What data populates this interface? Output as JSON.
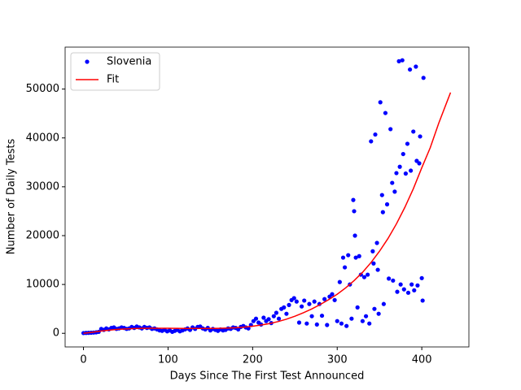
{
  "chart_data": {
    "type": "scatter",
    "xlabel": "Days Since The First Test Announced",
    "ylabel": "Number of Daily Tests",
    "xlim": [
      -21.7,
      455.7
    ],
    "ylim": [
      -2790,
      58590
    ],
    "xticks": [
      0,
      100,
      200,
      300,
      400
    ],
    "yticks": [
      0,
      10000,
      20000,
      30000,
      40000,
      50000
    ],
    "legend": "upper left",
    "series": [
      {
        "name": "Slovenia",
        "color": "#0000ff",
        "style": "points",
        "x": [
          0,
          3,
          6,
          9,
          12,
          15,
          18,
          21,
          24,
          27,
          30,
          33,
          36,
          39,
          42,
          45,
          48,
          51,
          54,
          57,
          60,
          63,
          66,
          69,
          72,
          75,
          78,
          81,
          84,
          87,
          90,
          93,
          96,
          99,
          102,
          105,
          108,
          111,
          114,
          117,
          120,
          123,
          126,
          129,
          132,
          135,
          138,
          141,
          144,
          147,
          150,
          153,
          156,
          159,
          162,
          165,
          168,
          171,
          174,
          177,
          180,
          183,
          186,
          189,
          192,
          195,
          198,
          201,
          204,
          207,
          210,
          213,
          216,
          219,
          222,
          225,
          228,
          231,
          234,
          237,
          240,
          243,
          246,
          249,
          252,
          255,
          258,
          261,
          264,
          267,
          270,
          273,
          276,
          279,
          282,
          285,
          288,
          291,
          294,
          297,
          300,
          303,
          305,
          307,
          309,
          311,
          313,
          315,
          317,
          319,
          320,
          321,
          322,
          324,
          326,
          328,
          330,
          332,
          334,
          336,
          338,
          340,
          342,
          343,
          344,
          345,
          347,
          348,
          349,
          351,
          353,
          354,
          355,
          357,
          359,
          361,
          363,
          365,
          366,
          368,
          370,
          371,
          373,
          374,
          375,
          377,
          378,
          379,
          381,
          383,
          384,
          386,
          387,
          388,
          390,
          391,
          393,
          394,
          395,
          397,
          398,
          400,
          401,
          402
        ],
        "values": [
          50,
          80,
          100,
          120,
          150,
          200,
          300,
          900,
          700,
          1000,
          800,
          1100,
          1200,
          900,
          1000,
          1200,
          1100,
          900,
          1000,
          1300,
          1100,
          1400,
          1200,
          1000,
          1300,
          1100,
          1200,
          900,
          1000,
          800,
          600,
          500,
          700,
          400,
          600,
          300,
          500,
          700,
          400,
          600,
          800,
          1000,
          700,
          1200,
          900,
          1300,
          1400,
          1000,
          800,
          1100,
          600,
          900,
          700,
          500,
          800,
          600,
          700,
          1000,
          900,
          1200,
          1100,
          800,
          1300,
          1500,
          1200,
          1000,
          1700,
          2500,
          3000,
          2200,
          1800,
          3200,
          2500,
          2900,
          2100,
          3500,
          4200,
          3000,
          5000,
          5300,
          4000,
          5800,
          6800,
          7200,
          6500,
          2200,
          5500,
          6700,
          2000,
          6000,
          3500,
          6500,
          1800,
          6000,
          3600,
          7000,
          1700,
          7500,
          8000,
          6800,
          2500,
          10500,
          2000,
          15500,
          13500,
          1500,
          16000,
          10000,
          3000,
          27300,
          25000,
          20000,
          15500,
          5300,
          15800,
          12000,
          2500,
          11500,
          3500,
          12000,
          2000,
          39300,
          16800,
          14300,
          5000,
          40700,
          18500,
          13000,
          4000,
          47300,
          28300,
          24800,
          6000,
          45100,
          26400,
          11200,
          41800,
          30800,
          10800,
          29000,
          32800,
          8500,
          55700,
          34100,
          10000,
          55900,
          36700,
          9000,
          32700,
          38800,
          8300,
          54000,
          33300,
          10000,
          41300,
          8800,
          54600,
          35300,
          9800,
          34800,
          40300,
          11300,
          6700,
          52300
        ]
      },
      {
        "name": "Fit",
        "color": "#ff0000",
        "style": "line",
        "x": [
          0,
          10,
          20,
          30,
          40,
          50,
          60,
          70,
          80,
          90,
          100,
          110,
          120,
          130,
          140,
          150,
          160,
          170,
          180,
          190,
          200,
          210,
          220,
          230,
          240,
          250,
          260,
          270,
          280,
          290,
          300,
          310,
          320,
          330,
          340,
          350,
          360,
          370,
          380,
          390,
          400,
          410,
          420,
          430,
          434
        ],
        "values": [
          0,
          200,
          450,
          650,
          800,
          900,
          980,
          1020,
          1040,
          1040,
          1030,
          1010,
          1000,
          990,
          990,
          1000,
          1020,
          1070,
          1150,
          1270,
          1450,
          1700,
          2000,
          2400,
          2900,
          3500,
          4200,
          5000,
          5900,
          6900,
          8000,
          9300,
          10800,
          12500,
          14500,
          16800,
          19400,
          22400,
          25800,
          29600,
          33900,
          38000,
          43000,
          47500,
          49300
        ]
      }
    ]
  }
}
